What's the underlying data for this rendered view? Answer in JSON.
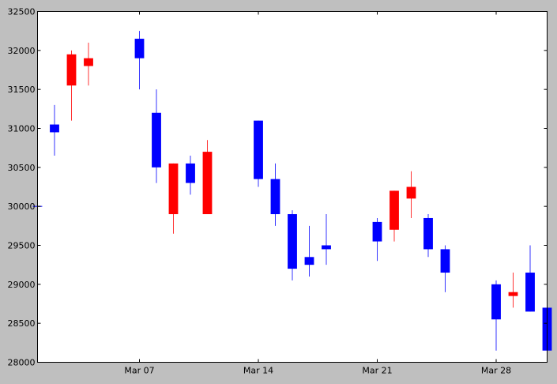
{
  "chart_data": {
    "type": "candlestick",
    "up_color": "#0000ff",
    "down_color": "#ff0000",
    "background": "#ffffff",
    "figure_background": "#bfbfbf",
    "ylim": [
      28000,
      32500
    ],
    "xlim": [
      "2022-03-01",
      "2022-03-31"
    ],
    "grid": false,
    "y_ticks": [
      28000,
      28500,
      29000,
      29500,
      30000,
      30500,
      31000,
      31500,
      32000,
      32500
    ],
    "x_ticks": [
      {
        "date": "2022-03-07",
        "label": "Mar 07"
      },
      {
        "date": "2022-03-14",
        "label": "Mar 14"
      },
      {
        "date": "2022-03-21",
        "label": "Mar 21"
      },
      {
        "date": "2022-03-28",
        "label": "Mar 28"
      }
    ],
    "candles": [
      {
        "date": "2022-03-01",
        "open": 30000,
        "high": 30000,
        "low": 30000,
        "close": 30000
      },
      {
        "date": "2022-03-02",
        "open": 30950,
        "high": 31300,
        "low": 30650,
        "close": 31050
      },
      {
        "date": "2022-03-03",
        "open": 31950,
        "high": 32000,
        "low": 31100,
        "close": 31550
      },
      {
        "date": "2022-03-04",
        "open": 31900,
        "high": 32100,
        "low": 31550,
        "close": 31800
      },
      {
        "date": "2022-03-07",
        "open": 31900,
        "high": 32250,
        "low": 31500,
        "close": 32150
      },
      {
        "date": "2022-03-08",
        "open": 30500,
        "high": 31500,
        "low": 30300,
        "close": 31200
      },
      {
        "date": "2022-03-09",
        "open": 30550,
        "high": 30550,
        "low": 29650,
        "close": 29900
      },
      {
        "date": "2022-03-10",
        "open": 30300,
        "high": 30650,
        "low": 30150,
        "close": 30550
      },
      {
        "date": "2022-03-11",
        "open": 30700,
        "high": 30850,
        "low": 29900,
        "close": 29900
      },
      {
        "date": "2022-03-14",
        "open": 30350,
        "high": 31100,
        "low": 30250,
        "close": 31100
      },
      {
        "date": "2022-03-15",
        "open": 29900,
        "high": 30550,
        "low": 29750,
        "close": 30350
      },
      {
        "date": "2022-03-16",
        "open": 29200,
        "high": 29950,
        "low": 29050,
        "close": 29900
      },
      {
        "date": "2022-03-17",
        "open": 29250,
        "high": 29750,
        "low": 29100,
        "close": 29350
      },
      {
        "date": "2022-03-18",
        "open": 29450,
        "high": 29900,
        "low": 29250,
        "close": 29500
      },
      {
        "date": "2022-03-21",
        "open": 29550,
        "high": 29850,
        "low": 29300,
        "close": 29800
      },
      {
        "date": "2022-03-22",
        "open": 30200,
        "high": 30200,
        "low": 29550,
        "close": 29700
      },
      {
        "date": "2022-03-23",
        "open": 30250,
        "high": 30450,
        "low": 29850,
        "close": 30100
      },
      {
        "date": "2022-03-24",
        "open": 29450,
        "high": 29900,
        "low": 29350,
        "close": 29850
      },
      {
        "date": "2022-03-25",
        "open": 29150,
        "high": 29500,
        "low": 28900,
        "close": 29450
      },
      {
        "date": "2022-03-28",
        "open": 28550,
        "high": 29050,
        "low": 28150,
        "close": 29000
      },
      {
        "date": "2022-03-29",
        "open": 28900,
        "high": 29150,
        "low": 28700,
        "close": 28850
      },
      {
        "date": "2022-03-30",
        "open": 28650,
        "high": 29500,
        "low": 28650,
        "close": 29150
      },
      {
        "date": "2022-03-31",
        "open": 28150,
        "high": 28850,
        "low": 28000,
        "close": 28700
      }
    ]
  }
}
